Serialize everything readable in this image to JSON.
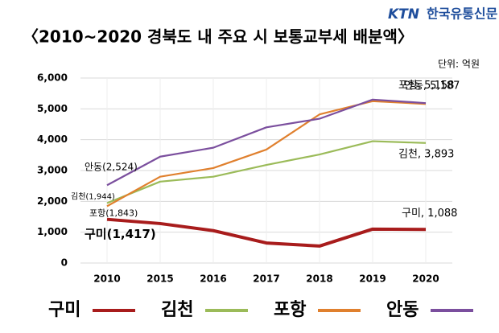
{
  "logo": {
    "brand": "KTN",
    "name": "한국유통신문"
  },
  "chart_data": {
    "type": "line",
    "title": "〈2010~2020  경북도 내 주요 시 보통교부세 배분액〉",
    "unit": "단위: 억원",
    "categories": [
      "2010",
      "2015",
      "2016",
      "2017",
      "2018",
      "2019",
      "2020"
    ],
    "series": [
      {
        "name": "구미",
        "color": "#a81c1c",
        "values": [
          1417,
          1280,
          1050,
          650,
          550,
          1100,
          1088
        ],
        "value_labels": [
          "구미(1,417)",
          null,
          null,
          null,
          null,
          null,
          "구미, 1,088"
        ]
      },
      {
        "name": "김천",
        "color": "#9bbb59",
        "values": [
          1944,
          2640,
          2800,
          3180,
          3520,
          3950,
          3893
        ],
        "value_labels": [
          "김천(1,944)",
          null,
          null,
          null,
          null,
          null,
          "김천, 3,893"
        ]
      },
      {
        "name": "포항",
        "color": "#e0802e",
        "values": [
          1843,
          2800,
          3080,
          3680,
          4820,
          5250,
          5158
        ],
        "value_labels": [
          "포항(1,843)",
          null,
          null,
          null,
          null,
          null,
          "포항, 5,158"
        ]
      },
      {
        "name": "안동",
        "color": "#7b4f9e",
        "values": [
          2524,
          3450,
          3740,
          4400,
          4680,
          5300,
          5187
        ],
        "value_labels": [
          "안동(2,524)",
          null,
          null,
          null,
          null,
          null,
          "안동, 5,187"
        ]
      }
    ],
    "ylim": [
      0,
      6000
    ],
    "yticks": [
      0,
      {
        "value": 1000,
        "label": "1,000"
      },
      {
        "value": 2000,
        "label": "2,000"
      },
      {
        "value": 3000,
        "label": "3,000"
      },
      {
        "value": 4000,
        "label": "4,000"
      },
      {
        "value": 5000,
        "label": "5,000"
      },
      {
        "value": 6000,
        "label": "6,000"
      }
    ],
    "grid": true
  }
}
